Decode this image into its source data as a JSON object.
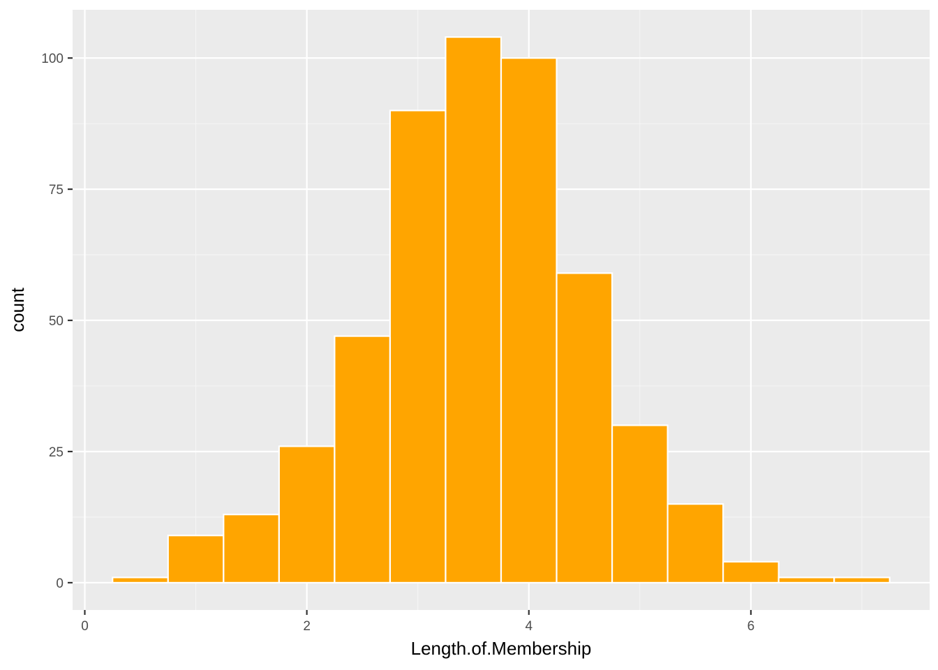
{
  "chart_data": {
    "type": "histogram",
    "title": "",
    "xlabel": "Length.of.Membership",
    "ylabel": "count",
    "bin_width": 0.5,
    "bins": [
      {
        "x_start": 0.25,
        "x_end": 0.75,
        "count": 1
      },
      {
        "x_start": 0.75,
        "x_end": 1.25,
        "count": 9
      },
      {
        "x_start": 1.25,
        "x_end": 1.75,
        "count": 13
      },
      {
        "x_start": 1.75,
        "x_end": 2.25,
        "count": 26
      },
      {
        "x_start": 2.25,
        "x_end": 2.75,
        "count": 47
      },
      {
        "x_start": 2.75,
        "x_end": 3.25,
        "count": 90
      },
      {
        "x_start": 3.25,
        "x_end": 3.75,
        "count": 104
      },
      {
        "x_start": 3.75,
        "x_end": 4.25,
        "count": 100
      },
      {
        "x_start": 4.25,
        "x_end": 4.75,
        "count": 59
      },
      {
        "x_start": 4.75,
        "x_end": 5.25,
        "count": 30
      },
      {
        "x_start": 5.25,
        "x_end": 5.75,
        "count": 15
      },
      {
        "x_start": 5.75,
        "x_end": 6.25,
        "count": 4
      },
      {
        "x_start": 6.25,
        "x_end": 6.75,
        "count": 1
      },
      {
        "x_start": 6.75,
        "x_end": 7.25,
        "count": 1
      }
    ],
    "xlim": [
      -0.11,
      7.61
    ],
    "ylim": [
      -5.2,
      109.2
    ],
    "x_ticks": [
      0,
      2,
      4,
      6
    ],
    "x_tick_labels": [
      "0",
      "2",
      "4",
      "6"
    ],
    "y_ticks": [
      0,
      25,
      50,
      75,
      100
    ],
    "y_tick_labels": [
      "0",
      "25",
      "50",
      "75",
      "100"
    ],
    "grid": true,
    "legend": "none",
    "colors": {
      "bar_fill": "#FFA500",
      "bar_outline": "#FFFFFF",
      "panel_background": "#EBEBEB",
      "grid_major": "#FFFFFF",
      "grid_minor": "#F5F5F5",
      "tick_label": "#4D4D4D",
      "tick_mark": "#333333",
      "axis_title": "#000000"
    }
  }
}
